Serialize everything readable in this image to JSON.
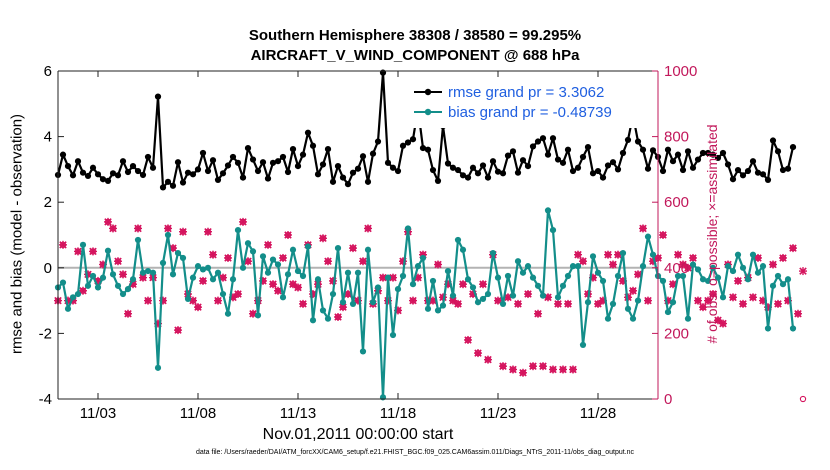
{
  "chart_data": {
    "type": "line",
    "title": "Southern Hemisphere 38308 / 38580 = 99.295%",
    "subtitle": "AIRCRAFT_V_WIND_COMPONENT @ 688 hPa",
    "xlabel": "Nov.01,2011 00:00:00 start",
    "ylabel": "rmse and bias (model - observation)",
    "ylabel_right": "# of obs: o=possible; ×=assimilated",
    "footnote": "data file: /Users/raeder/DAI/ATM_forcXX/CAM6_setup/f.e21.FHIST_BGC.f09_025.CAM6assim.011/Diags_NTrS_2011-11/obs_diag_output.nc",
    "xlim": [
      1,
      31
    ],
    "ylim": [
      -4,
      6
    ],
    "ylim_right": [
      0,
      1000
    ],
    "x_ticks": [
      "11/03",
      "11/08",
      "11/13",
      "11/18",
      "11/23",
      "11/28"
    ],
    "x_tick_values": [
      3,
      8,
      13,
      18,
      23,
      28
    ],
    "y_ticks": [
      "-4",
      "-2",
      "0",
      "2",
      "4",
      "6"
    ],
    "y_tick_values": [
      -4,
      -2,
      0,
      2,
      4,
      6
    ],
    "y_ticks_right": [
      "0",
      "200",
      "400",
      "600",
      "800",
      "1000"
    ],
    "y_tick_values_right": [
      0,
      200,
      400,
      600,
      800,
      1000
    ],
    "zero_line": 0,
    "colors": {
      "rmse": "#000000",
      "bias": "#138e8a",
      "obs": "#d5145e",
      "axis_right": "#c2185b",
      "legend_text": "#1f5fe0",
      "zero": "#b3b3b3"
    },
    "legend": [
      {
        "name": "rmse",
        "label": "rmse grand pr = 3.3062"
      },
      {
        "name": "bias",
        "label": "bias grand pr = -0.48739"
      }
    ],
    "series": [
      {
        "name": "rmse",
        "axis": "left",
        "x_start": 1,
        "x_step": 0.25,
        "values": [
          2.83,
          3.45,
          3.1,
          2.82,
          3.25,
          2.9,
          2.8,
          3.05,
          2.85,
          2.7,
          2.65,
          2.88,
          2.82,
          3.25,
          2.92,
          3.1,
          2.95,
          2.83,
          3.38,
          3.05,
          5.22,
          2.45,
          2.62,
          2.5,
          3.22,
          2.6,
          2.9,
          2.85,
          3.0,
          3.5,
          2.95,
          3.28,
          2.68,
          2.88,
          3.12,
          3.38,
          3.2,
          2.75,
          3.65,
          3.3,
          2.95,
          3.22,
          2.72,
          3.2,
          3.25,
          3.38,
          2.92,
          3.62,
          3.1,
          3.45,
          4.12,
          3.72,
          2.85,
          3.15,
          3.62,
          2.62,
          3.1,
          2.75,
          2.55,
          2.9,
          3.02,
          3.4,
          2.62,
          3.48,
          3.85,
          5.95,
          3.2,
          3.05,
          2.95,
          3.72,
          3.82,
          3.92,
          4.85,
          3.65,
          3.6,
          2.98,
          2.65,
          4.32,
          3.18,
          3.05,
          2.98,
          2.82,
          2.75,
          3.05,
          2.88,
          3.12,
          2.75,
          3.25,
          2.93,
          2.88,
          3.42,
          3.55,
          2.9,
          3.28,
          3.1,
          3.7,
          3.85,
          3.95,
          3.45,
          3.95,
          3.3,
          3.2,
          3.6,
          2.95,
          3.05,
          3.38,
          3.68,
          2.88,
          2.95,
          2.75,
          3.12,
          3.22,
          3.0,
          3.5,
          3.9,
          4.65,
          3.85,
          3.6,
          3.02,
          3.58,
          3.38,
          2.95,
          3.6,
          3.25,
          3.45,
          2.98,
          3.55,
          3.05,
          3.3,
          3.5,
          3.5,
          3.45,
          3.35,
          3.5,
          3.15,
          2.7,
          2.98,
          2.82,
          2.95,
          3.25,
          2.9,
          2.85,
          2.68,
          3.88,
          3.55,
          2.98,
          3.02,
          3.68
        ]
      },
      {
        "name": "bias",
        "axis": "left",
        "x_start": 1,
        "x_step": 0.25,
        "values": [
          -0.6,
          -0.45,
          -1.25,
          -0.9,
          -0.8,
          0.7,
          -0.55,
          -0.25,
          -0.6,
          -0.3,
          0.52,
          -0.2,
          -0.55,
          -0.8,
          -0.65,
          -0.35,
          0.85,
          -0.15,
          -0.1,
          -0.15,
          -3.05,
          0.15,
          1.0,
          -0.2,
          0.45,
          0.3,
          -0.95,
          -0.3,
          0.05,
          -0.05,
          0.0,
          -0.35,
          -0.15,
          -0.8,
          -1.4,
          -0.35,
          1.15,
          0.0,
          0.75,
          0.5,
          -1.45,
          0.35,
          -0.15,
          0.25,
          0.1,
          -0.9,
          -0.2,
          0.55,
          -0.1,
          -0.25,
          0.65,
          -1.6,
          -0.35,
          -1.3,
          -1.55,
          -0.8,
          0.6,
          -1.05,
          -0.15,
          -1.1,
          -0.15,
          -2.55,
          0.55,
          -1.05,
          -0.6,
          -3.95,
          -0.3,
          -2.05,
          -0.65,
          -0.25,
          1.2,
          -0.5,
          0.05,
          0.3,
          -1.25,
          -0.4,
          -1.3,
          -1.15,
          -0.1,
          -0.85,
          0.85,
          0.55,
          -0.35,
          -0.6,
          -1.05,
          -0.95,
          -0.8,
          0.45,
          -0.3,
          -1.1,
          -0.25,
          -0.85,
          0.2,
          -0.15,
          0.05,
          -0.3,
          -0.55,
          -0.85,
          1.75,
          1.15,
          -0.9,
          -0.55,
          -0.25,
          0.05,
          0.05,
          -2.35,
          -1.05,
          0.35,
          -0.15,
          -0.4,
          -1.55,
          -1.1,
          -0.25,
          0.45,
          -1.25,
          -1.55,
          -1.0,
          0.05,
          0.95,
          0.4,
          -0.25,
          -0.4,
          -1.35,
          -1.05,
          -0.25,
          -0.25,
          -1.55,
          0.1,
          -0.05,
          -0.35,
          -0.4,
          0.0,
          -0.3,
          -0.9,
          0.05,
          -0.1,
          0.4,
          0.0,
          -0.35,
          0.4,
          -0.15,
          0.05,
          -1.85,
          -0.55,
          -0.25,
          -0.5,
          -0.35,
          -1.85
        ]
      },
      {
        "name": "obs_assimilated",
        "axis": "right",
        "marker": "x",
        "x_start": 1,
        "x_step": 0.25,
        "values": [
          300,
          470,
          300,
          300,
          450,
          330,
          380,
          450,
          360,
          410,
          540,
          520,
          420,
          380,
          260,
          350,
          520,
          370,
          300,
          370,
          230,
          300,
          520,
          460,
          210,
          510,
          320,
          300,
          280,
          360,
          510,
          440,
          300,
          370,
          430,
          310,
          320,
          540,
          420,
          260,
          300,
          360,
          470,
          350,
          330,
          430,
          500,
          350,
          340,
          290,
          470,
          320,
          350,
          490,
          420,
          360,
          250,
          280,
          320,
          460,
          300,
          420,
          520,
          290,
          330,
          370,
          300,
          370,
          270,
          420,
          510,
          300,
          370,
          440,
          300,
          300,
          410,
          310,
          350,
          300,
          290,
          350,
          180,
          320,
          140,
          350,
          120,
          440,
          300,
          100,
          310,
          90,
          290,
          80,
          320,
          100,
          260,
          100,
          310,
          90,
          290,
          90,
          290,
          90,
          440,
          420,
          320,
          370,
          290,
          300,
          440,
          410,
          440,
          360,
          310,
          330,
          380,
          520,
          300,
          420,
          430,
          500,
          300,
          350,
          440,
          410,
          400,
          430,
          300,
          280,
          300,
          320,
          240,
          230,
          410,
          310,
          360,
          290,
          370,
          310,
          430,
          300,
          280,
          410,
          290,
          430,
          300,
          460,
          260,
          390
        ]
      },
      {
        "name": "obs_possible",
        "axis": "right",
        "marker": "o",
        "x_start": 1,
        "x_step": 0.25,
        "values": [
          300,
          470,
          300,
          300,
          450,
          330,
          380,
          450,
          360,
          410,
          540,
          520,
          420,
          380,
          260,
          350,
          520,
          370,
          300,
          370,
          230,
          300,
          520,
          460,
          210,
          510,
          320,
          300,
          280,
          360,
          510,
          440,
          300,
          370,
          430,
          310,
          320,
          540,
          420,
          260,
          300,
          360,
          470,
          350,
          330,
          430,
          500,
          350,
          340,
          290,
          470,
          320,
          350,
          490,
          420,
          360,
          250,
          280,
          320,
          460,
          300,
          420,
          520,
          290,
          330,
          370,
          300,
          370,
          270,
          420,
          510,
          300,
          370,
          440,
          300,
          300,
          410,
          310,
          350,
          300,
          290,
          350,
          180,
          320,
          140,
          350,
          120,
          440,
          300,
          100,
          310,
          90,
          290,
          80,
          320,
          100,
          260,
          100,
          310,
          90,
          290,
          90,
          290,
          90,
          440,
          420,
          320,
          370,
          290,
          300,
          440,
          410,
          440,
          360,
          310,
          330,
          380,
          520,
          300,
          420,
          430,
          500,
          300,
          350,
          440,
          410,
          400,
          430,
          300,
          280,
          300,
          320,
          240,
          230,
          410,
          310,
          360,
          290,
          370,
          310,
          430,
          300,
          280,
          410,
          290,
          430,
          300,
          460,
          260,
          0
        ]
      }
    ]
  }
}
